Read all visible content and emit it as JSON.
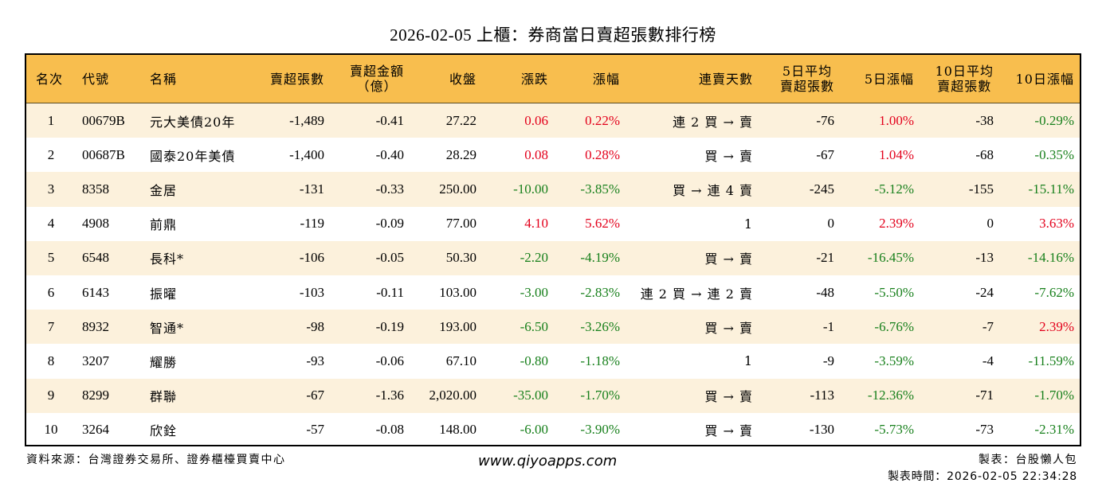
{
  "title": "2026-02-05 上櫃：券商當日賣超張數排行榜",
  "colors": {
    "header_bg": "#F8BE4E",
    "row_alt_bg": "#FCF1DC",
    "up": "#E3001B",
    "down": "#18801C",
    "border": "#000000"
  },
  "columns": [
    {
      "key": "rank",
      "label": "名次"
    },
    {
      "key": "code",
      "label": "代號"
    },
    {
      "key": "name",
      "label": "名稱"
    },
    {
      "key": "net_sell_lots",
      "label": "賣超張數"
    },
    {
      "key": "net_sell_amount",
      "label": "賣超金額\n（億）"
    },
    {
      "key": "close",
      "label": "收盤"
    },
    {
      "key": "change",
      "label": "漲跌"
    },
    {
      "key": "change_pct",
      "label": "漲幅"
    },
    {
      "key": "sell_streak",
      "label": "連賣天數"
    },
    {
      "key": "avg5_net_sell",
      "label": "5日平均\n賣超張數"
    },
    {
      "key": "chg5_pct",
      "label": "5日漲幅"
    },
    {
      "key": "avg10_net_sell",
      "label": "10日平均\n賣超張數"
    },
    {
      "key": "chg10_pct",
      "label": "10日漲幅"
    }
  ],
  "rows": [
    {
      "rank": "1",
      "code": "00679B",
      "name": "元大美債20年",
      "net_sell_lots": "-1,489",
      "net_sell_amount": "-0.41",
      "close": "27.22",
      "change": "0.06",
      "change_pct": "0.22%",
      "sell_streak": "連 2 買 → 賣",
      "avg5_net_sell": "-76",
      "chg5_pct": "1.00%",
      "avg10_net_sell": "-38",
      "chg10_pct": "-0.29%"
    },
    {
      "rank": "2",
      "code": "00687B",
      "name": "國泰20年美債",
      "net_sell_lots": "-1,400",
      "net_sell_amount": "-0.40",
      "close": "28.29",
      "change": "0.08",
      "change_pct": "0.28%",
      "sell_streak": "買 → 賣",
      "avg5_net_sell": "-67",
      "chg5_pct": "1.04%",
      "avg10_net_sell": "-68",
      "chg10_pct": "-0.35%"
    },
    {
      "rank": "3",
      "code": "8358",
      "name": "金居",
      "net_sell_lots": "-131",
      "net_sell_amount": "-0.33",
      "close": "250.00",
      "change": "-10.00",
      "change_pct": "-3.85%",
      "sell_streak": "買 → 連 4 賣",
      "avg5_net_sell": "-245",
      "chg5_pct": "-5.12%",
      "avg10_net_sell": "-155",
      "chg10_pct": "-15.11%"
    },
    {
      "rank": "4",
      "code": "4908",
      "name": "前鼎",
      "net_sell_lots": "-119",
      "net_sell_amount": "-0.09",
      "close": "77.00",
      "change": "4.10",
      "change_pct": "5.62%",
      "sell_streak": "1",
      "avg5_net_sell": "0",
      "chg5_pct": "2.39%",
      "avg10_net_sell": "0",
      "chg10_pct": "3.63%"
    },
    {
      "rank": "5",
      "code": "6548",
      "name": "長科*",
      "net_sell_lots": "-106",
      "net_sell_amount": "-0.05",
      "close": "50.30",
      "change": "-2.20",
      "change_pct": "-4.19%",
      "sell_streak": "買 → 賣",
      "avg5_net_sell": "-21",
      "chg5_pct": "-16.45%",
      "avg10_net_sell": "-13",
      "chg10_pct": "-14.16%"
    },
    {
      "rank": "6",
      "code": "6143",
      "name": "振曜",
      "net_sell_lots": "-103",
      "net_sell_amount": "-0.11",
      "close": "103.00",
      "change": "-3.00",
      "change_pct": "-2.83%",
      "sell_streak": "連 2 買 → 連 2 賣",
      "avg5_net_sell": "-48",
      "chg5_pct": "-5.50%",
      "avg10_net_sell": "-24",
      "chg10_pct": "-7.62%"
    },
    {
      "rank": "7",
      "code": "8932",
      "name": "智通*",
      "net_sell_lots": "-98",
      "net_sell_amount": "-0.19",
      "close": "193.00",
      "change": "-6.50",
      "change_pct": "-3.26%",
      "sell_streak": "買 → 賣",
      "avg5_net_sell": "-1",
      "chg5_pct": "-6.76%",
      "avg10_net_sell": "-7",
      "chg10_pct": "2.39%"
    },
    {
      "rank": "8",
      "code": "3207",
      "name": "耀勝",
      "net_sell_lots": "-93",
      "net_sell_amount": "-0.06",
      "close": "67.10",
      "change": "-0.80",
      "change_pct": "-1.18%",
      "sell_streak": "1",
      "avg5_net_sell": "-9",
      "chg5_pct": "-3.59%",
      "avg10_net_sell": "-4",
      "chg10_pct": "-11.59%"
    },
    {
      "rank": "9",
      "code": "8299",
      "name": "群聯",
      "net_sell_lots": "-67",
      "net_sell_amount": "-1.36",
      "close": "2,020.00",
      "change": "-35.00",
      "change_pct": "-1.70%",
      "sell_streak": "買 → 賣",
      "avg5_net_sell": "-113",
      "chg5_pct": "-12.36%",
      "avg10_net_sell": "-71",
      "chg10_pct": "-1.70%"
    },
    {
      "rank": "10",
      "code": "3264",
      "name": "欣銓",
      "net_sell_lots": "-57",
      "net_sell_amount": "-0.08",
      "close": "148.00",
      "change": "-6.00",
      "change_pct": "-3.90%",
      "sell_streak": "買 → 賣",
      "avg5_net_sell": "-130",
      "chg5_pct": "-5.73%",
      "avg10_net_sell": "-73",
      "chg10_pct": "-2.31%"
    }
  ],
  "footer": {
    "source": "資料來源：台灣證券交易所、證券櫃檯買賣中心",
    "website": "www.qiyoapps.com",
    "author": "製表：台股懶人包",
    "generated_at": "製表時間：2026-02-05 22:34:28"
  }
}
